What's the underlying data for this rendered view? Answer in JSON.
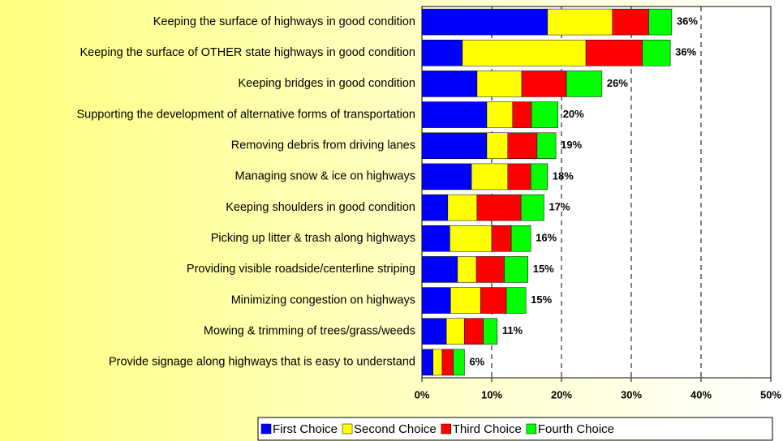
{
  "chart_data": {
    "type": "stacked-bar-horizontal",
    "categories": [
      "Keeping the surface of highways in good condition",
      "Keeping the surface of OTHER state highways in good condition",
      "Keeping bridges in good condition",
      "Supporting the development of alternative forms of transportation",
      "Removing debris from driving lanes",
      "Managing snow & ice on highways",
      "Keeping shoulders in good condition",
      "Picking up litter & trash along highways",
      "Providing visible roadside/centerline striping",
      "Minimizing congestion on highways",
      "Mowing & trimming of trees/grass/weeds",
      "Provide signage along highways that is easy to understand"
    ],
    "series": [
      {
        "name": "First Choice",
        "color": "#0000ff",
        "values": [
          18.0,
          5.8,
          7.9,
          9.3,
          9.3,
          7.1,
          3.7,
          4.0,
          5.1,
          4.1,
          3.5,
          1.6
        ]
      },
      {
        "name": "Second Choice",
        "color": "#ffff00",
        "values": [
          9.3,
          17.7,
          6.4,
          3.7,
          3.0,
          5.2,
          4.2,
          6.0,
          2.7,
          4.3,
          2.6,
          1.3
        ]
      },
      {
        "name": "Third Choice",
        "color": "#ff0000",
        "values": [
          5.2,
          8.1,
          6.4,
          2.7,
          4.2,
          3.3,
          6.3,
          2.8,
          4.0,
          3.7,
          2.7,
          1.6
        ]
      },
      {
        "name": "Fourth Choice",
        "color": "#00ff00",
        "values": [
          3.3,
          4.0,
          5.1,
          3.8,
          2.7,
          2.4,
          3.3,
          2.8,
          3.4,
          2.8,
          2.0,
          1.6
        ]
      }
    ],
    "total_labels": [
      "36%",
      "36%",
      "26%",
      "20%",
      "19%",
      "18%",
      "17%",
      "16%",
      "15%",
      "15%",
      "11%",
      "6%"
    ],
    "xlim": [
      0,
      50
    ],
    "xticks": [
      {
        "value": 0,
        "label": "0%"
      },
      {
        "value": 10,
        "label": "10%"
      },
      {
        "value": 20,
        "label": "20%"
      },
      {
        "value": 30,
        "label": "30%"
      },
      {
        "value": 40,
        "label": "40%"
      },
      {
        "value": 50,
        "label": "50%"
      }
    ],
    "grid": true
  }
}
